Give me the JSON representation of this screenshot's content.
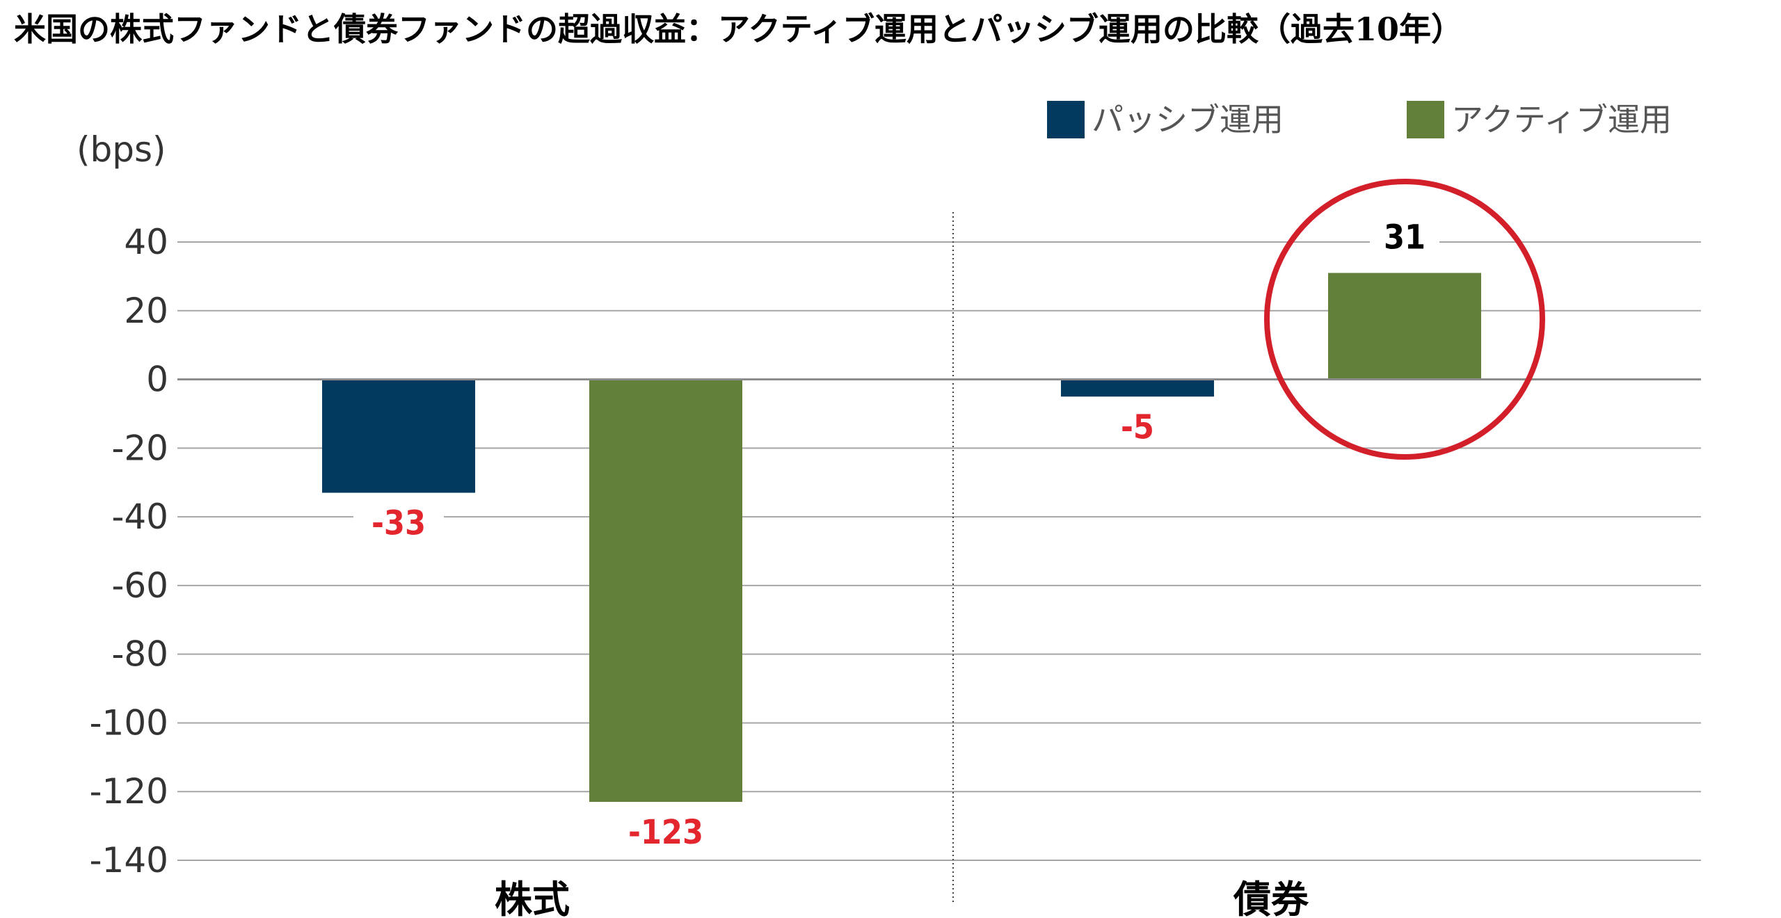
{
  "chart_data": {
    "type": "bar",
    "title": "米国の株式ファンドと債券ファンドの超過収益：アクティブ運用とパッシブ運用の比較（過去10年）",
    "ylabel": "(bps)",
    "xlabel": "",
    "categories": [
      "株式",
      "債券"
    ],
    "series": [
      {
        "name": "パッシブ運用",
        "values": [
          -33,
          -5
        ],
        "color": "#013a5e"
      },
      {
        "name": "アクティブ運用",
        "values": [
          -123,
          31
        ],
        "color": "#62803a"
      }
    ],
    "data_labels": [
      [
        "-33",
        "-5"
      ],
      [
        "-123",
        "31"
      ]
    ],
    "label_colors": {
      "negative": "#e3262e",
      "positive": "#000000"
    },
    "highlight_color": "#d31f2a",
    "highlight": {
      "series": 1,
      "category": 1
    },
    "ylim": [
      -140,
      40
    ],
    "yticks": [
      40,
      20,
      0,
      -20,
      -40,
      -60,
      -80,
      -100,
      -120,
      -140
    ],
    "grid": true,
    "legend_position": "top-right"
  }
}
